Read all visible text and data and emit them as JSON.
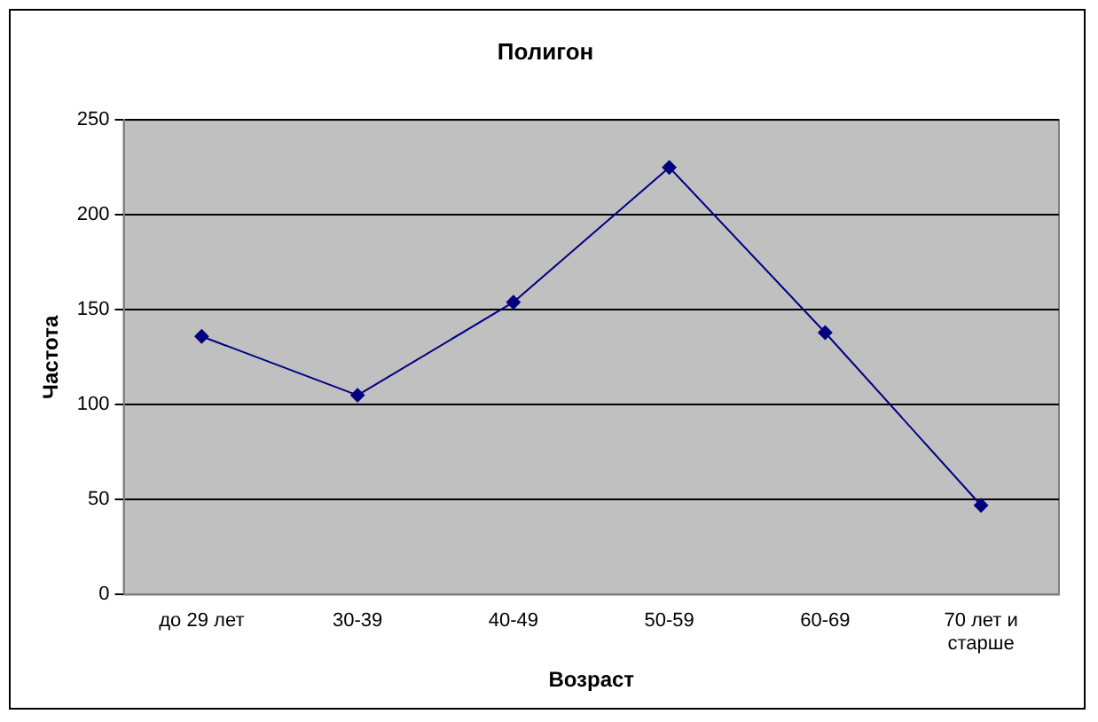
{
  "chart_data": {
    "type": "line",
    "title": "Полигон",
    "xlabel": "Возраст",
    "ylabel": "Частота",
    "categories": [
      "до 29 лет",
      "30-39",
      "40-49",
      "50-59",
      "60-69",
      "70 лет и старше"
    ],
    "series": [
      {
        "color": "#000080",
        "values": [
          136,
          105,
          154,
          225,
          138,
          47
        ]
      }
    ],
    "ylim": [
      0,
      250
    ],
    "yticks": [
      0,
      50,
      100,
      150,
      200,
      250
    ],
    "grid": "y",
    "legend": false,
    "marker": "diamond",
    "line_style": "solid"
  }
}
